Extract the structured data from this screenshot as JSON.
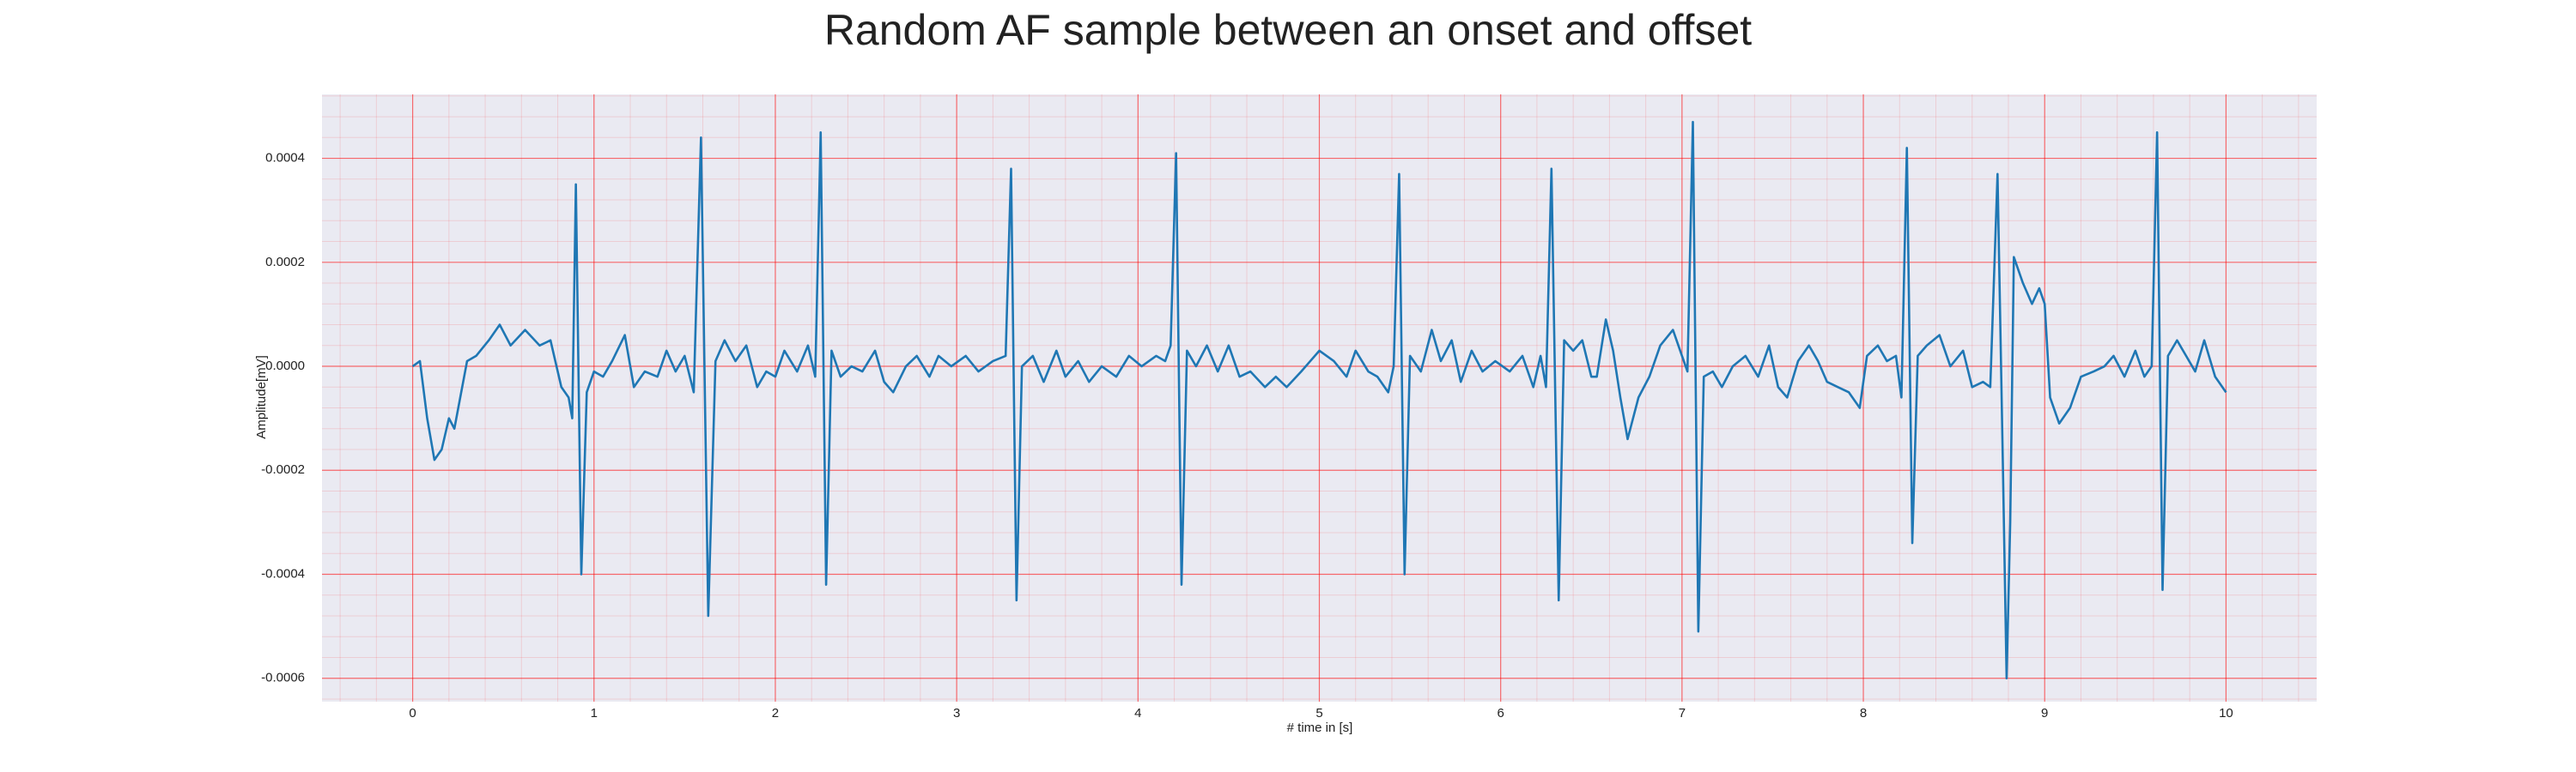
{
  "chart_data": {
    "type": "line",
    "title": "Random AF sample between an onset and offset",
    "xlabel": "# time in [s]",
    "ylabel": "Amplitude[mV]",
    "x": [
      0,
      0.04,
      0.08,
      0.12,
      0.16,
      0.2,
      0.23,
      0.3,
      0.35,
      0.42,
      0.48,
      0.54,
      0.62,
      0.7,
      0.76,
      0.82,
      0.86,
      0.88,
      0.9,
      0.93,
      0.96,
      1.0,
      1.05,
      1.1,
      1.17,
      1.22,
      1.28,
      1.35,
      1.4,
      1.45,
      1.5,
      1.55,
      1.59,
      1.63,
      1.67,
      1.72,
      1.78,
      1.84,
      1.9,
      1.95,
      2.0,
      2.05,
      2.12,
      2.18,
      2.22,
      2.25,
      2.28,
      2.31,
      2.36,
      2.42,
      2.48,
      2.55,
      2.6,
      2.65,
      2.72,
      2.78,
      2.85,
      2.9,
      2.97,
      3.05,
      3.12,
      3.2,
      3.27,
      3.3,
      3.33,
      3.36,
      3.42,
      3.48,
      3.55,
      3.6,
      3.67,
      3.73,
      3.8,
      3.88,
      3.95,
      4.02,
      4.1,
      4.15,
      4.18,
      4.21,
      4.24,
      4.27,
      4.32,
      4.38,
      4.44,
      4.5,
      4.56,
      4.62,
      4.7,
      4.76,
      4.82,
      4.9,
      5.0,
      5.08,
      5.15,
      5.2,
      5.27,
      5.32,
      5.38,
      5.41,
      5.44,
      5.47,
      5.5,
      5.56,
      5.62,
      5.67,
      5.73,
      5.78,
      5.84,
      5.9,
      5.97,
      6.05,
      6.12,
      6.18,
      6.22,
      6.25,
      6.28,
      6.32,
      6.35,
      6.4,
      6.45,
      6.5,
      6.53,
      6.58,
      6.62,
      6.66,
      6.7,
      6.76,
      6.82,
      6.88,
      6.95,
      7.0,
      7.03,
      7.06,
      7.09,
      7.12,
      7.17,
      7.22,
      7.28,
      7.35,
      7.42,
      7.48,
      7.53,
      7.58,
      7.64,
      7.7,
      7.75,
      7.8,
      7.86,
      7.92,
      7.98,
      8.02,
      8.08,
      8.13,
      8.18,
      8.21,
      8.24,
      8.27,
      8.3,
      8.35,
      8.42,
      8.48,
      8.55,
      8.6,
      8.66,
      8.7,
      8.74,
      8.77,
      8.79,
      8.81,
      8.83,
      8.88,
      8.93,
      8.97,
      9.0,
      9.03,
      9.08,
      9.14,
      9.2,
      9.27,
      9.33,
      9.38,
      9.44,
      9.5,
      9.55,
      9.59,
      9.62,
      9.65,
      9.68,
      9.73,
      9.78,
      9.83,
      9.88,
      9.94,
      10.0
    ],
    "series": [
      {
        "color": "#1f77b4",
        "values": [
          0,
          1e-05,
          -0.0001,
          -0.00018,
          -0.00016,
          -0.0001,
          -0.00012,
          1e-05,
          2e-05,
          5e-05,
          8e-05,
          4e-05,
          7e-05,
          4e-05,
          5e-05,
          -4e-05,
          -6e-05,
          -0.0001,
          0.00035,
          -0.0004,
          -5e-05,
          -1e-05,
          -2e-05,
          1e-05,
          6e-05,
          -4e-05,
          -1e-05,
          -2e-05,
          3e-05,
          -1e-05,
          2e-05,
          -5e-05,
          0.00044,
          -0.00048,
          1e-05,
          5e-05,
          1e-05,
          4e-05,
          -4e-05,
          -1e-05,
          -2e-05,
          3e-05,
          -1e-05,
          4e-05,
          -2e-05,
          0.00045,
          -0.00042,
          3e-05,
          -2e-05,
          0,
          -1e-05,
          3e-05,
          -3e-05,
          -5e-05,
          0,
          2e-05,
          -2e-05,
          2e-05,
          0,
          2e-05,
          -1e-05,
          1e-05,
          2e-05,
          0.00038,
          -0.00045,
          0,
          2e-05,
          -3e-05,
          3e-05,
          -2e-05,
          1e-05,
          -3e-05,
          0,
          -2e-05,
          2e-05,
          0,
          2e-05,
          1e-05,
          4e-05,
          0.00041,
          -0.00042,
          3e-05,
          0,
          4e-05,
          -1e-05,
          4e-05,
          -2e-05,
          -1e-05,
          -4e-05,
          -2e-05,
          -4e-05,
          -1e-05,
          3e-05,
          1e-05,
          -2e-05,
          3e-05,
          -1e-05,
          -2e-05,
          -5e-05,
          0,
          0.00037,
          -0.0004,
          2e-05,
          -1e-05,
          7e-05,
          1e-05,
          5e-05,
          -3e-05,
          3e-05,
          -1e-05,
          1e-05,
          -1e-05,
          2e-05,
          -4e-05,
          2e-05,
          -4e-05,
          0.00038,
          -0.00045,
          5e-05,
          3e-05,
          5e-05,
          -2e-05,
          -2e-05,
          9e-05,
          3e-05,
          -6e-05,
          -0.00014,
          -6e-05,
          -2e-05,
          4e-05,
          7e-05,
          2e-05,
          -1e-05,
          0.00047,
          -0.00051,
          -2e-05,
          -1e-05,
          -4e-05,
          0,
          2e-05,
          -2e-05,
          4e-05,
          -4e-05,
          -6e-05,
          1e-05,
          4e-05,
          1e-05,
          -3e-05,
          -4e-05,
          -5e-05,
          -8e-05,
          2e-05,
          4e-05,
          1e-05,
          2e-05,
          -6e-05,
          0.00042,
          -0.00034,
          2e-05,
          4e-05,
          6e-05,
          0,
          3e-05,
          -4e-05,
          -3e-05,
          -4e-05,
          0.00037,
          -0.0002,
          -0.0006,
          -0.0003,
          0.00021,
          0.00016,
          0.00012,
          0.00015,
          0.00012,
          -6e-05,
          -0.00011,
          -8e-05,
          -2e-05,
          -1e-05,
          0,
          2e-05,
          -2e-05,
          3e-05,
          -2e-05,
          0,
          0.00045,
          -0.00043,
          2e-05,
          5e-05,
          2e-05,
          -1e-05,
          5e-05,
          -2e-05,
          -5e-05
        ]
      }
    ],
    "xlim": [
      -0.5,
      10.5
    ],
    "ylim": [
      -0.000645,
      0.000523
    ],
    "xticks": [
      0,
      1,
      2,
      3,
      4,
      5,
      6,
      7,
      8,
      9,
      10
    ],
    "yticks": [
      -0.0006,
      -0.0004,
      -0.0002,
      {
        "value": 0,
        "label": "0.0000"
      },
      0.0002,
      0.0004
    ],
    "grid": true,
    "minor_grid": true,
    "grid_color": "#ff0000",
    "background": "#eaeaf2"
  }
}
